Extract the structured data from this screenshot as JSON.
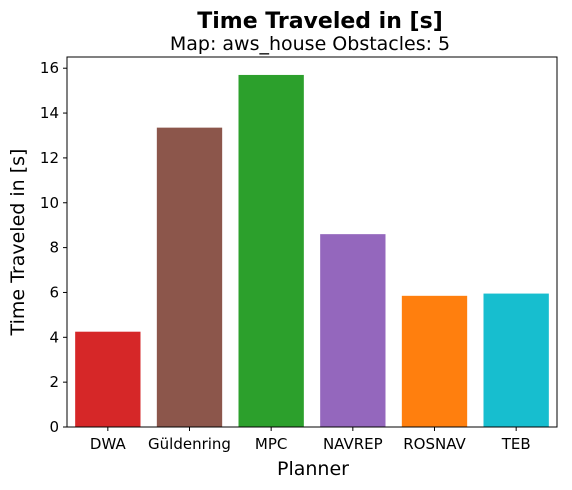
{
  "chart_data": {
    "type": "bar",
    "title": "Time Traveled in [s]",
    "subtitle": "Map: aws_house Obstacles: 5",
    "xlabel": "Planner",
    "ylabel": "Time Traveled in [s]",
    "categories": [
      "DWA",
      "Güldenring",
      "MPC",
      "NAVREP",
      "ROSNAV",
      "TEB"
    ],
    "values": [
      4.25,
      13.35,
      15.7,
      8.6,
      5.85,
      5.95
    ],
    "colors": [
      "#d62728",
      "#8c564b",
      "#2ca02c",
      "#9467bd",
      "#ff7f0e",
      "#17becf"
    ],
    "ylim": [
      0,
      16.5
    ],
    "yticks": [
      0,
      2,
      4,
      6,
      8,
      10,
      12,
      14,
      16
    ],
    "grid": false,
    "legend": false
  }
}
